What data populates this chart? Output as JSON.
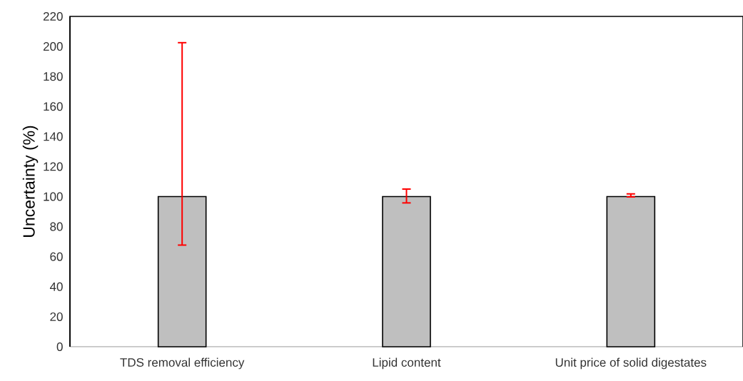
{
  "chart_data": {
    "type": "bar",
    "ylabel": "Uncertainty (%)",
    "categories": [
      "TDS removal efficiency",
      "Lipid content",
      "Unit price of solid digestates"
    ],
    "values": [
      100,
      100,
      100
    ],
    "color": "#bfbfbf",
    "errors": [
      [
        67.7,
        202.5
      ],
      [
        95.8,
        105
      ],
      [
        99.8,
        101.8
      ]
    ],
    "ylim": [
      0,
      220
    ],
    "yticks": [
      0,
      20,
      40,
      60,
      80,
      100,
      120,
      140,
      160,
      180,
      200,
      220
    ]
  }
}
